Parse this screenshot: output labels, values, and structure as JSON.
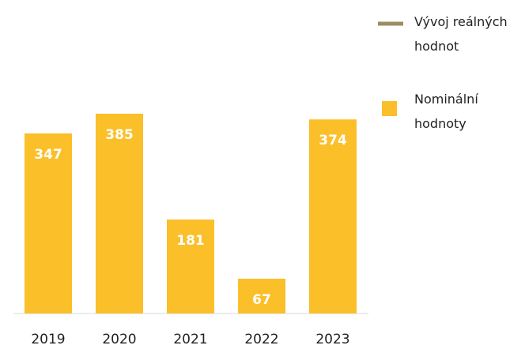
{
  "chart_data": {
    "type": "bar",
    "categories": [
      "2019",
      "2020",
      "2021",
      "2022",
      "2023"
    ],
    "series": [
      {
        "name": "Vývoj reálných hodnot",
        "type": "line",
        "color": "#9c8c5e",
        "values": [
          null,
          null,
          null,
          null,
          null
        ]
      },
      {
        "name": "Nominální hodnoty",
        "type": "bar",
        "color": "#fbbf2a",
        "values": [
          347,
          385,
          181,
          67,
          374
        ]
      }
    ],
    "legend": "right"
  }
}
